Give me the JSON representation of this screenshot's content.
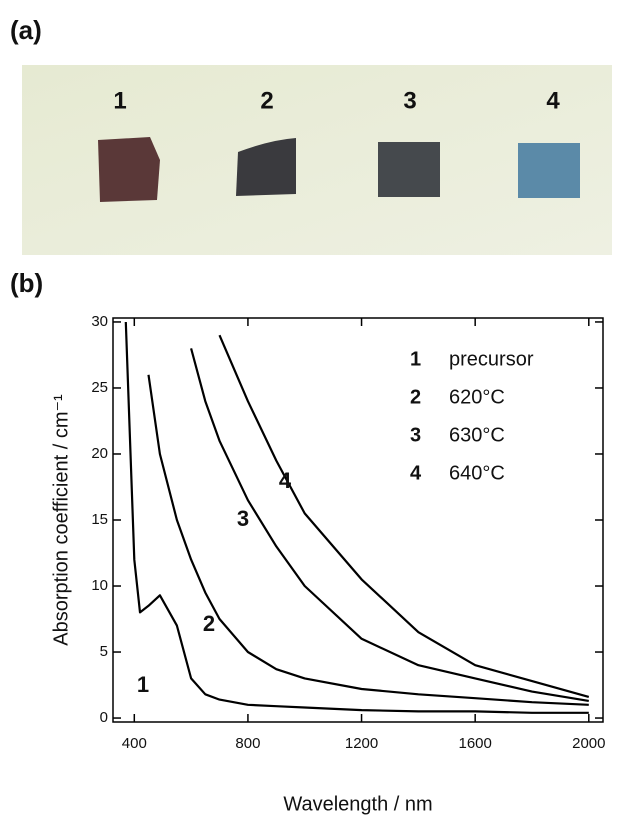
{
  "photo": {
    "label": "(a)",
    "samples": [
      "1",
      "2",
      "3",
      "4"
    ]
  },
  "chart_data": {
    "type": "line",
    "panel_label": "(b)",
    "xlabel": "Wavelength / nm",
    "ylabel": "Absorption coefficient / cm⁻¹",
    "x": [
      370,
      400,
      420,
      450,
      490,
      550,
      600,
      650,
      700,
      800,
      900,
      1000,
      1200,
      1400,
      1600,
      1800,
      2000
    ],
    "series": [
      {
        "label": "1",
        "name": "precursor",
        "color": "#000000",
        "values": [
          30,
          12,
          8,
          8.5,
          9.3,
          7,
          3,
          1.8,
          1.4,
          1.0,
          0.9,
          0.8,
          0.6,
          0.5,
          0.5,
          0.4,
          0.4
        ]
      },
      {
        "label": "2",
        "name": "620°C",
        "color": "#000000",
        "values": [
          null,
          null,
          null,
          26,
          20,
          15,
          12,
          9.5,
          7.5,
          5,
          3.7,
          3,
          2.2,
          1.8,
          1.5,
          1.2,
          1.0
        ]
      },
      {
        "label": "3",
        "name": "630°C",
        "color": "#000000",
        "values": [
          null,
          null,
          null,
          null,
          null,
          null,
          28,
          24,
          21,
          16.5,
          13,
          10,
          6,
          4,
          3,
          2,
          1.3
        ]
      },
      {
        "label": "4",
        "name": "640°C",
        "color": "#000000",
        "values": [
          null,
          null,
          null,
          null,
          null,
          null,
          null,
          null,
          29,
          24,
          19.5,
          15.5,
          10.5,
          6.5,
          4,
          2.8,
          1.6
        ]
      }
    ],
    "xlim": [
      325,
      2050
    ],
    "ylim": [
      -0.3,
      30.3
    ],
    "xticks": [
      400,
      800,
      1200,
      1600,
      2000
    ],
    "yticks": [
      0,
      5,
      10,
      15,
      20,
      25,
      30
    ]
  }
}
